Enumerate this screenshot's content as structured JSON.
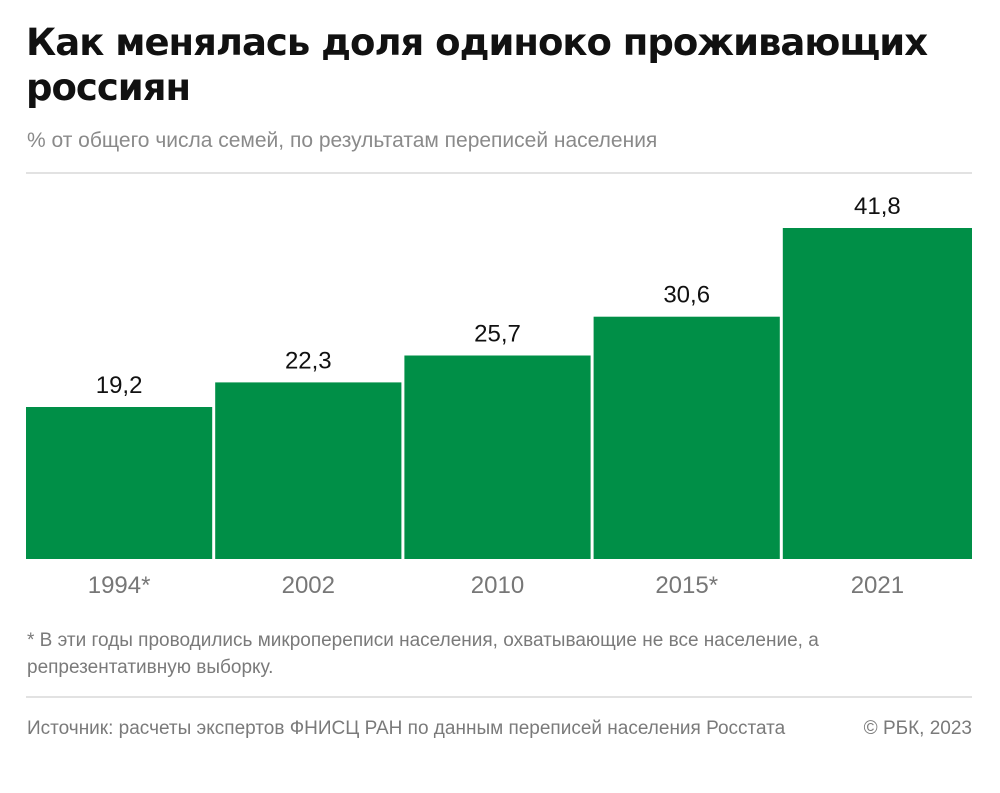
{
  "header": {
    "title": "Как менялась доля одиноко проживающих россиян",
    "subtitle": "% от общего числа семей, по результатам переписей населения"
  },
  "chart_data": {
    "type": "bar",
    "categories": [
      "1994*",
      "2002",
      "2010",
      "2015*",
      "2021"
    ],
    "values": [
      19.2,
      22.3,
      25.7,
      30.6,
      41.8
    ],
    "value_labels": [
      "19,2",
      "22,3",
      "25,7",
      "30,6",
      "41,8"
    ],
    "title": "Как менялась доля одиноко проживающих россиян",
    "subtitle": "% от общего числа семей, по результатам переписей населения",
    "xlabel": "",
    "ylabel": "",
    "ylim": [
      0,
      41.8
    ],
    "grid": false,
    "legend": "none",
    "bar_color": "#008f47"
  },
  "footer": {
    "footnote": "* В эти годы проводились микропереписи населения, охватывающие не все население, а репрезентативную выборку.",
    "source": "Источник: расчеты экспертов ФНИСЦ РАН по данным переписей населения Росстата",
    "copyright": "© РБК, 2023"
  }
}
